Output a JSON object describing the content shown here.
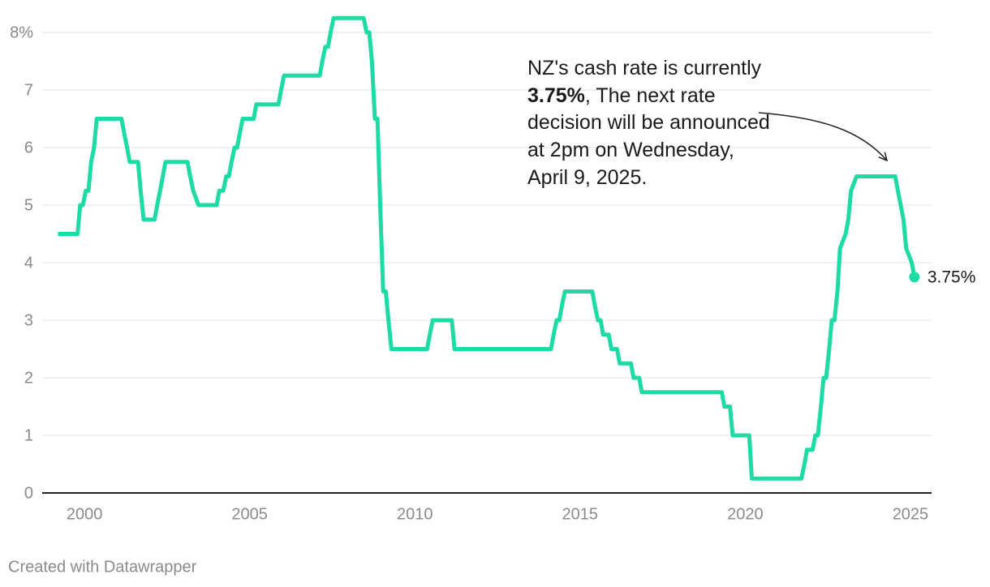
{
  "chart_data": {
    "type": "line",
    "annotation": {
      "parts": [
        "NZ's cash rate is currently ",
        "3.75%",
        ", The next rate decision will be announced at 2pm on Wednesday, April 9, 2025."
      ]
    },
    "end_label": "3.75%",
    "footer": "Created with Datawrapper",
    "xlim": [
      1998.72,
      2025.64
    ],
    "xticks": [
      2000,
      2005,
      2010,
      2015,
      2020,
      2025
    ],
    "ylim": [
      0,
      8
    ],
    "yticks": [
      0,
      1,
      2,
      3,
      4,
      5,
      6,
      7,
      {
        "value": 8,
        "label": "8%"
      }
    ],
    "grid": true,
    "color": "#1ddba4",
    "x": [
      1999.2,
      1999.79,
      1999.87,
      1999.95,
      2000.04,
      2000.12,
      2000.2,
      2000.29,
      2000.37,
      2001.12,
      2001.2,
      2001.29,
      2001.37,
      2001.62,
      2001.7,
      2001.79,
      2002.12,
      2002.2,
      2002.29,
      2002.37,
      2002.45,
      2003.12,
      2003.2,
      2003.29,
      2003.45,
      2004.0,
      2004.08,
      2004.2,
      2004.29,
      2004.37,
      2004.45,
      2004.54,
      2004.62,
      2004.7,
      2004.79,
      2005.12,
      2005.2,
      2005.87,
      2005.95,
      2006.04,
      2007.12,
      2007.2,
      2007.29,
      2007.37,
      2007.45,
      2007.54,
      2008.45,
      2008.54,
      2008.62,
      2008.7,
      2008.79,
      2008.87,
      2008.95,
      2009.04,
      2009.12,
      2009.2,
      2009.29,
      2010.37,
      2010.45,
      2010.54,
      2011.12,
      2011.2,
      2014.12,
      2014.2,
      2014.29,
      2014.37,
      2014.45,
      2014.54,
      2015.37,
      2015.45,
      2015.54,
      2015.62,
      2015.7,
      2015.87,
      2015.95,
      2016.12,
      2016.2,
      2016.54,
      2016.62,
      2016.79,
      2016.87,
      2019.29,
      2019.37,
      2019.54,
      2019.62,
      2020.12,
      2020.2,
      2021.7,
      2021.79,
      2021.87,
      2022.04,
      2022.12,
      2022.2,
      2022.29,
      2022.37,
      2022.45,
      2022.54,
      2022.62,
      2022.7,
      2022.79,
      2022.87,
      2023.04,
      2023.12,
      2023.2,
      2023.37,
      2024.54,
      2024.62,
      2024.79,
      2024.87,
      2025.04,
      2025.12
    ],
    "values": [
      4.5,
      4.5,
      5.0,
      5.0,
      5.25,
      5.25,
      5.75,
      6.0,
      6.5,
      6.5,
      6.25,
      6.0,
      5.75,
      5.75,
      5.25,
      4.75,
      4.75,
      5.0,
      5.25,
      5.5,
      5.75,
      5.75,
      5.5,
      5.25,
      5.0,
      5.0,
      5.25,
      5.25,
      5.5,
      5.5,
      5.75,
      6.0,
      6.0,
      6.25,
      6.5,
      6.5,
      6.75,
      6.75,
      7.0,
      7.25,
      7.25,
      7.5,
      7.75,
      7.75,
      8.0,
      8.25,
      8.25,
      8.0,
      8.0,
      7.5,
      6.5,
      6.5,
      5.0,
      3.5,
      3.5,
      3.0,
      2.5,
      2.5,
      2.75,
      3.0,
      3.0,
      2.5,
      2.5,
      2.75,
      3.0,
      3.0,
      3.25,
      3.5,
      3.5,
      3.25,
      3.0,
      3.0,
      2.75,
      2.75,
      2.5,
      2.5,
      2.25,
      2.25,
      2.0,
      2.0,
      1.75,
      1.75,
      1.5,
      1.5,
      1.0,
      1.0,
      0.25,
      0.25,
      0.5,
      0.75,
      0.75,
      1.0,
      1.0,
      1.5,
      2.0,
      2.0,
      2.5,
      3.0,
      3.0,
      3.5,
      4.25,
      4.5,
      4.75,
      5.25,
      5.5,
      5.5,
      5.25,
      4.75,
      4.25,
      4.0,
      3.75
    ]
  }
}
